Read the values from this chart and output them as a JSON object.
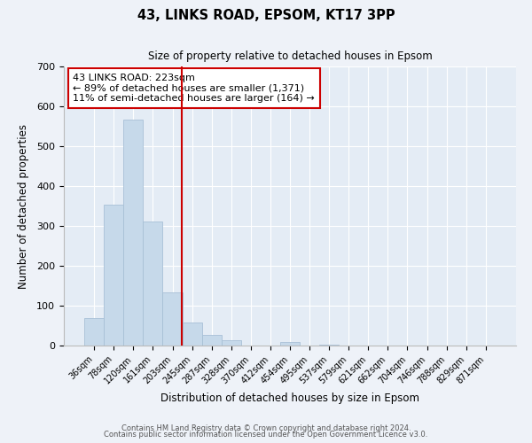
{
  "title": "43, LINKS ROAD, EPSOM, KT17 3PP",
  "subtitle": "Size of property relative to detached houses in Epsom",
  "xlabel": "Distribution of detached houses by size in Epsom",
  "ylabel": "Number of detached properties",
  "bar_labels": [
    "36sqm",
    "78sqm",
    "120sqm",
    "161sqm",
    "203sqm",
    "245sqm",
    "287sqm",
    "328sqm",
    "370sqm",
    "412sqm",
    "454sqm",
    "495sqm",
    "537sqm",
    "579sqm",
    "621sqm",
    "662sqm",
    "704sqm",
    "746sqm",
    "788sqm",
    "829sqm",
    "871sqm"
  ],
  "bar_values": [
    68,
    354,
    567,
    312,
    133,
    57,
    27,
    13,
    0,
    0,
    10,
    0,
    3,
    0,
    0,
    0,
    0,
    0,
    0,
    0,
    0
  ],
  "bar_color": "#c6d9ea",
  "bar_edgecolor": "#a8c0d6",
  "vline_x_index": 4.47,
  "vline_color": "#cc0000",
  "annotation_text": "43 LINKS ROAD: 223sqm\n← 89% of detached houses are smaller (1,371)\n11% of semi-detached houses are larger (164) →",
  "annotation_box_facecolor": "#ffffff",
  "annotation_box_edgecolor": "#cc0000",
  "ylim": [
    0,
    700
  ],
  "yticks": [
    0,
    100,
    200,
    300,
    400,
    500,
    600,
    700
  ],
  "footer1": "Contains HM Land Registry data © Crown copyright and database right 2024.",
  "footer2": "Contains public sector information licensed under the Open Government Licence v3.0.",
  "fig_facecolor": "#eef2f8",
  "plot_facecolor": "#e4ecf5"
}
